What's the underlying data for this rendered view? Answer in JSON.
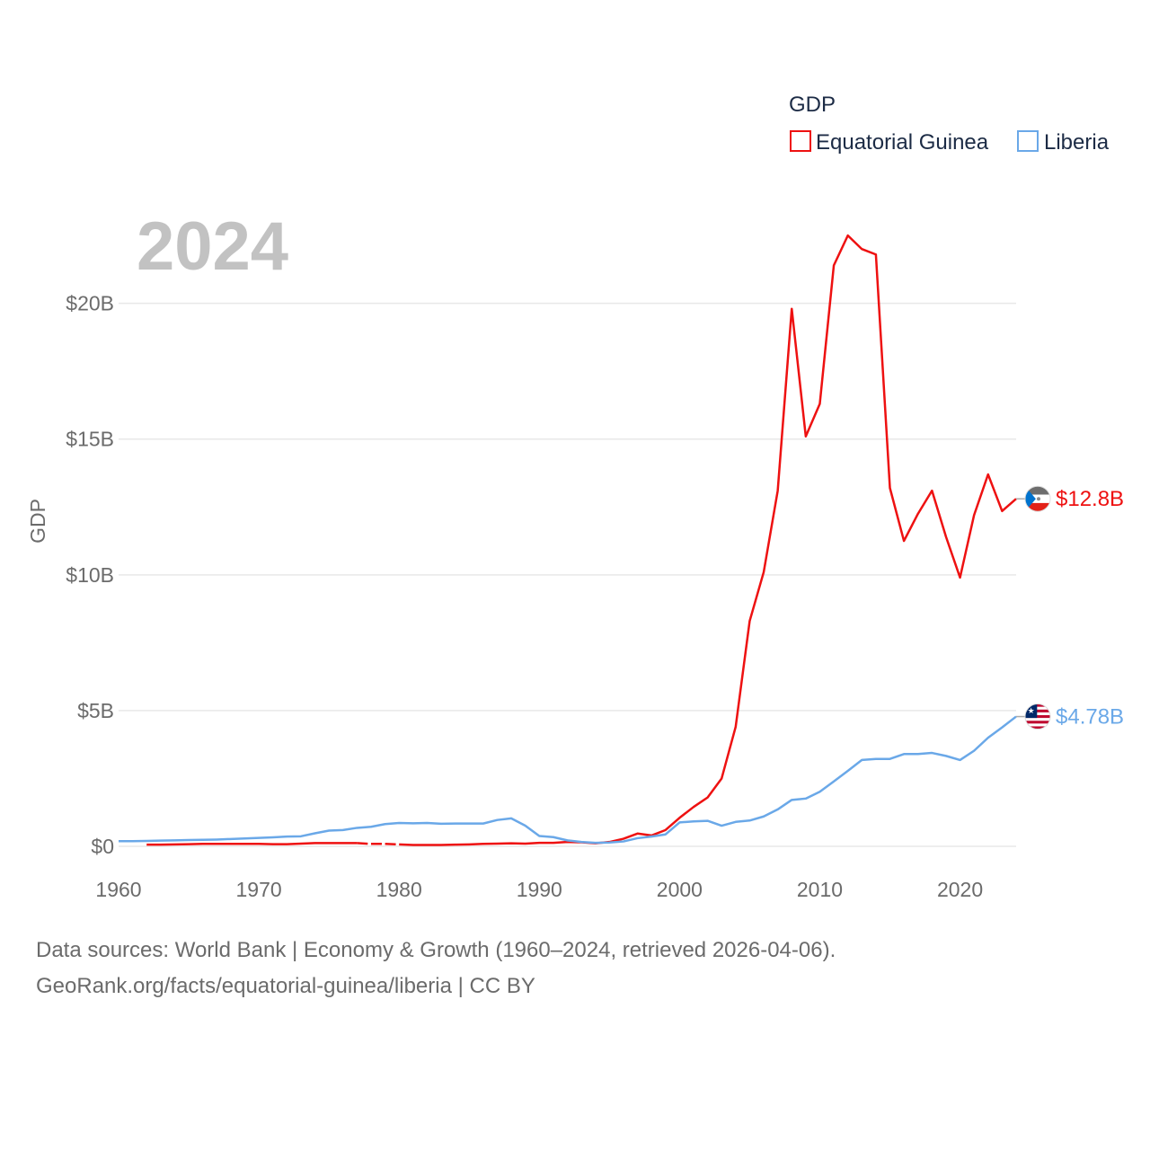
{
  "chart_data": {
    "type": "line",
    "year_label": "2024",
    "ylabel": "GDP",
    "legend_title": "GDP",
    "xlim": [
      1960,
      2024
    ],
    "ylim": [
      0,
      23000000000
    ],
    "x_ticks": [
      1960,
      1970,
      1980,
      1990,
      2000,
      2010,
      2020
    ],
    "y_ticks": [
      {
        "value": 0,
        "label": "$0"
      },
      {
        "value": 5000000000,
        "label": "$5B"
      },
      {
        "value": 10000000000,
        "label": "$10B"
      },
      {
        "value": 15000000000,
        "label": "$15B"
      },
      {
        "value": 20000000000,
        "label": "$20B"
      }
    ],
    "series": [
      {
        "name": "Equatorial Guinea",
        "color": "#ee1111",
        "end_label": "$12.8B",
        "flag": "equatorial-guinea-flag-icon",
        "points": [
          [
            1962,
            0.06
          ],
          [
            1963,
            0.06
          ],
          [
            1964,
            0.07
          ],
          [
            1965,
            0.08
          ],
          [
            1966,
            0.09
          ],
          [
            1967,
            0.09
          ],
          [
            1968,
            0.09
          ],
          [
            1969,
            0.09
          ],
          [
            1970,
            0.09
          ],
          [
            1971,
            0.08
          ],
          [
            1972,
            0.08
          ],
          [
            1973,
            0.1
          ],
          [
            1974,
            0.12
          ],
          [
            1975,
            0.12
          ],
          [
            1976,
            0.12
          ],
          [
            1977,
            0.12
          ],
          [
            1978,
            0.09
          ],
          [
            1979,
            0.09
          ],
          [
            1980,
            0.07
          ],
          [
            1981,
            0.05
          ],
          [
            1982,
            0.05
          ],
          [
            1983,
            0.05
          ],
          [
            1984,
            0.06
          ],
          [
            1985,
            0.07
          ],
          [
            1986,
            0.09
          ],
          [
            1987,
            0.1
          ],
          [
            1988,
            0.11
          ],
          [
            1989,
            0.1
          ],
          [
            1990,
            0.13
          ],
          [
            1991,
            0.13
          ],
          [
            1992,
            0.16
          ],
          [
            1993,
            0.15
          ],
          [
            1994,
            0.11
          ],
          [
            1995,
            0.16
          ],
          [
            1996,
            0.28
          ],
          [
            1997,
            0.47
          ],
          [
            1998,
            0.4
          ],
          [
            1999,
            0.6
          ],
          [
            2000,
            1.05
          ],
          [
            2001,
            1.45
          ],
          [
            2002,
            1.8
          ],
          [
            2003,
            2.5
          ],
          [
            2004,
            4.4
          ],
          [
            2005,
            8.3
          ],
          [
            2006,
            10.1
          ],
          [
            2007,
            13.1
          ],
          [
            2008,
            19.8
          ],
          [
            2009,
            15.1
          ],
          [
            2010,
            16.3
          ],
          [
            2011,
            21.4
          ],
          [
            2012,
            22.5
          ],
          [
            2013,
            22.0
          ],
          [
            2014,
            21.8
          ],
          [
            2015,
            13.2
          ],
          [
            2016,
            11.25
          ],
          [
            2017,
            12.25
          ],
          [
            2018,
            13.1
          ],
          [
            2019,
            11.4
          ],
          [
            2020,
            9.9
          ],
          [
            2021,
            12.2
          ],
          [
            2022,
            13.7
          ],
          [
            2023,
            12.35
          ],
          [
            2024,
            12.8
          ]
        ],
        "gaps": [
          [
            1977,
            1980
          ]
        ]
      },
      {
        "name": "Liberia",
        "color": "#6aa8e8",
        "end_label": "$4.78B",
        "flag": "liberia-flag-icon",
        "points": [
          [
            1960,
            0.19
          ],
          [
            1961,
            0.19
          ],
          [
            1962,
            0.2
          ],
          [
            1963,
            0.21
          ],
          [
            1964,
            0.22
          ],
          [
            1965,
            0.23
          ],
          [
            1966,
            0.24
          ],
          [
            1967,
            0.25
          ],
          [
            1968,
            0.27
          ],
          [
            1969,
            0.29
          ],
          [
            1970,
            0.31
          ],
          [
            1971,
            0.33
          ],
          [
            1972,
            0.36
          ],
          [
            1973,
            0.37
          ],
          [
            1974,
            0.48
          ],
          [
            1975,
            0.58
          ],
          [
            1976,
            0.6
          ],
          [
            1977,
            0.68
          ],
          [
            1978,
            0.72
          ],
          [
            1979,
            0.82
          ],
          [
            1980,
            0.86
          ],
          [
            1981,
            0.85
          ],
          [
            1982,
            0.86
          ],
          [
            1983,
            0.83
          ],
          [
            1984,
            0.84
          ],
          [
            1985,
            0.84
          ],
          [
            1986,
            0.84
          ],
          [
            1987,
            0.97
          ],
          [
            1988,
            1.03
          ],
          [
            1989,
            0.76
          ],
          [
            1990,
            0.38
          ],
          [
            1991,
            0.34
          ],
          [
            1992,
            0.22
          ],
          [
            1993,
            0.16
          ],
          [
            1994,
            0.13
          ],
          [
            1995,
            0.14
          ],
          [
            1996,
            0.18
          ],
          [
            1997,
            0.3
          ],
          [
            1998,
            0.36
          ],
          [
            1999,
            0.44
          ],
          [
            2000,
            0.88
          ],
          [
            2001,
            0.92
          ],
          [
            2002,
            0.94
          ],
          [
            2003,
            0.76
          ],
          [
            2004,
            0.9
          ],
          [
            2005,
            0.95
          ],
          [
            2006,
            1.1
          ],
          [
            2007,
            1.36
          ],
          [
            2008,
            1.71
          ],
          [
            2009,
            1.76
          ],
          [
            2010,
            2.01
          ],
          [
            2011,
            2.39
          ],
          [
            2012,
            2.78
          ],
          [
            2013,
            3.18
          ],
          [
            2014,
            3.22
          ],
          [
            2015,
            3.22
          ],
          [
            2016,
            3.4
          ],
          [
            2017,
            3.4
          ],
          [
            2018,
            3.44
          ],
          [
            2019,
            3.33
          ],
          [
            2020,
            3.18
          ],
          [
            2021,
            3.52
          ],
          [
            2022,
            4.0
          ],
          [
            2023,
            4.38
          ],
          [
            2024,
            4.78
          ]
        ]
      }
    ]
  },
  "sources": {
    "line1": "Data sources: World Bank | Economy & Growth (1960–2024, retrieved 2026-04-06).",
    "line2": "GeoRank.org/facts/equatorial-guinea/liberia | CC BY"
  }
}
